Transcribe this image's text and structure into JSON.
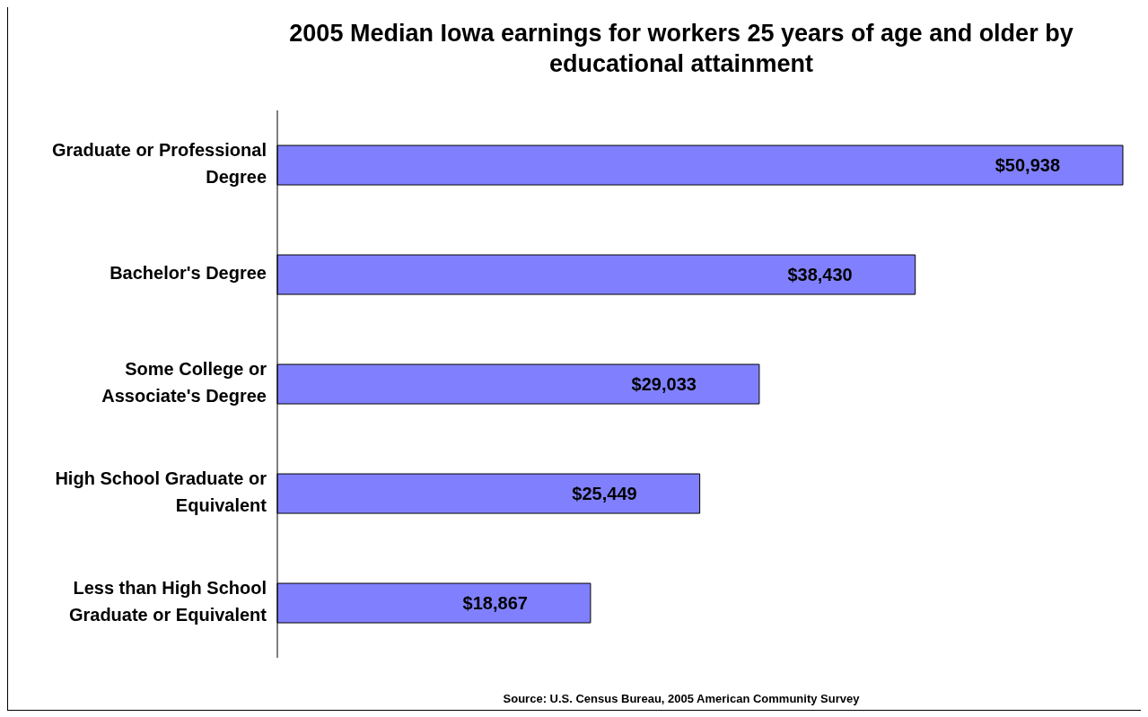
{
  "chart_data": {
    "type": "bar",
    "orientation": "horizontal",
    "title": "2005 Median Iowa earnings for workers 25 years of age and older by educational attainment",
    "categories": [
      "Graduate or Professional Degree",
      "Bachelor's Degree",
      "Some College or Associate's Degree",
      "High School Graduate or Equivalent",
      "Less than High School Graduate or Equivalent"
    ],
    "values": [
      50938,
      38430,
      29033,
      25449,
      18867
    ],
    "value_labels": [
      "$50,938",
      "$38,430",
      "$29,033",
      "$25,449",
      "$18,867"
    ],
    "color": "#8080ff",
    "annotations": [
      "Source:  U.S. Census Bureau, 2005 American Community Survey"
    ]
  }
}
